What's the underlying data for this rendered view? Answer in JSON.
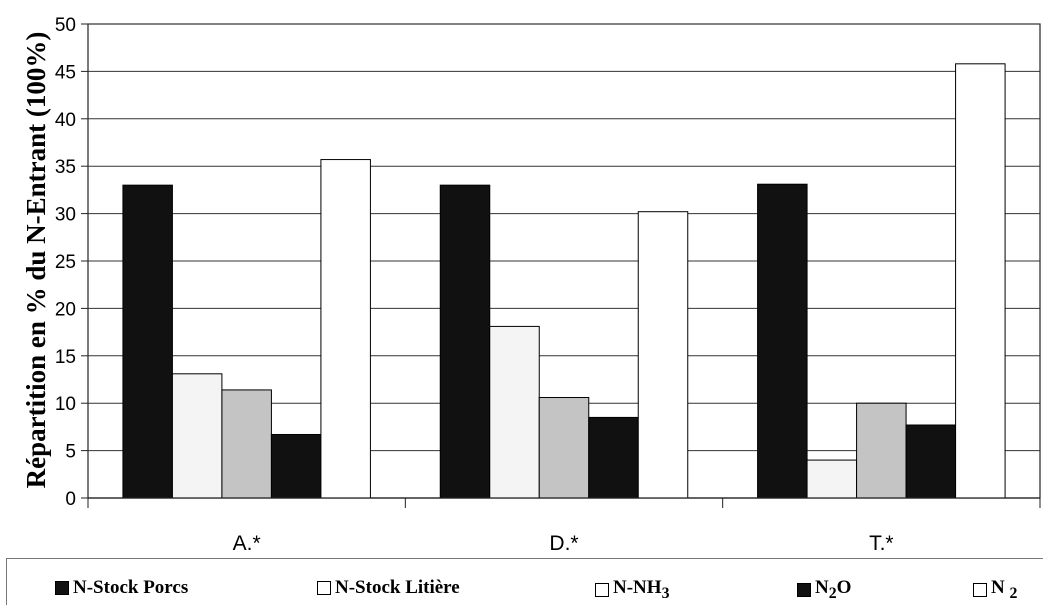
{
  "chart_data": {
    "type": "bar",
    "title": "",
    "ylabel": "Répartition en % du N-Entrant (100%)",
    "xlabel": "",
    "ylim": [
      0,
      50
    ],
    "yticks": [
      0,
      5,
      10,
      15,
      20,
      25,
      30,
      35,
      40,
      45,
      50
    ],
    "grid": true,
    "legend_position": "bottom",
    "categories": [
      "A.*",
      "D.*",
      "T.*"
    ],
    "series": [
      {
        "name": "N-Stock Porcs",
        "color": "#111111",
        "values": [
          33,
          33,
          33.1
        ]
      },
      {
        "name": "N-Stock Litière",
        "color": "#f4f4f4",
        "values": [
          13.1,
          18.1,
          4
        ]
      },
      {
        "name": "N-NH3",
        "color": "#c4c4c4",
        "values": [
          11.4,
          10.6,
          10
        ]
      },
      {
        "name": "N2O",
        "color": "#111111",
        "values": [
          6.7,
          8.5,
          7.7
        ]
      },
      {
        "name": "N 2",
        "color": "#ffffff",
        "values": [
          35.7,
          30.2,
          45.8
        ]
      }
    ]
  },
  "legend": {
    "items": [
      {
        "label": "N-Stock Porcs"
      },
      {
        "label": "N-Stock Litière"
      },
      {
        "label": "N-NH",
        "sub": "3"
      },
      {
        "label": "N",
        "sub": "2",
        "tail": "O"
      },
      {
        "label": "N ",
        "sub": "2"
      }
    ]
  }
}
